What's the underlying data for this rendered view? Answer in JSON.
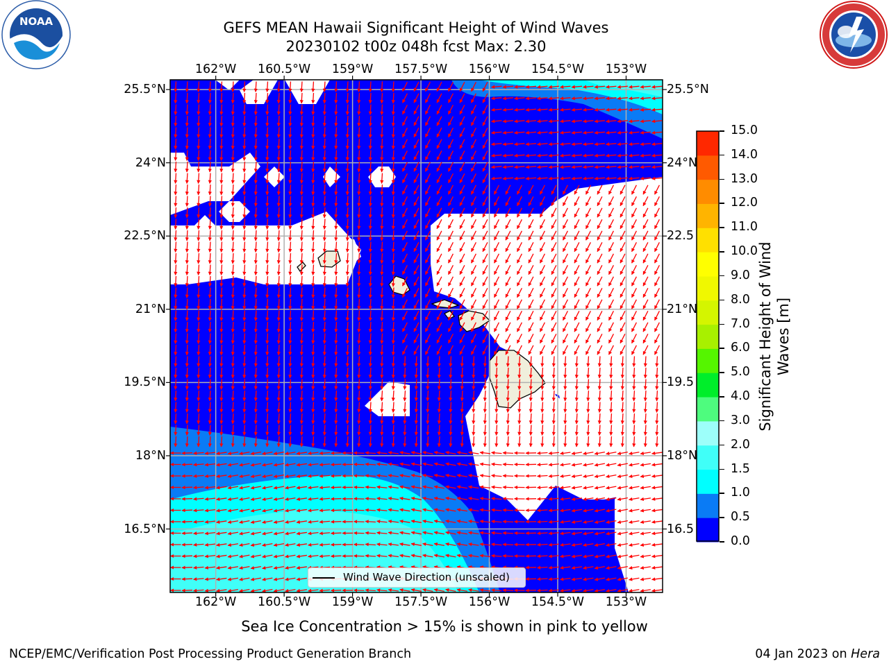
{
  "header": {
    "title_line1": "GEFS MEAN Hawaii Significant Height of Wind Waves",
    "title_line2": "20230102 t00z 048h fcst   Max: 2.30"
  },
  "logos": {
    "left": {
      "text": "NOAA",
      "ring_text": "NATIONAL OCEANIC AND ATMOSPHERIC ADMINISTRATION · U.S. DEPARTMENT OF COMMERCE"
    },
    "right": {
      "ring_text": "NATIONAL WEATHER SERVICE"
    }
  },
  "map": {
    "lon_labels": [
      "162°W",
      "160.5°W",
      "159°W",
      "157.5°W",
      "156°W",
      "154.5°W",
      "153°W"
    ],
    "lat_labels": [
      "25.5°N",
      "24°N",
      "22.5°N",
      "21°N",
      "19.5°N",
      "18°N",
      "16.5°N"
    ],
    "lat_labels_right": [
      "25.5°N",
      "24°N",
      "22.5",
      "21°N",
      "19.5",
      "18°N",
      "16.5"
    ],
    "extent": {
      "lon_min": -163,
      "lon_max": -152.2,
      "lat_min": 15.2,
      "lat_max": 25.7
    },
    "water_color": "#0000ff",
    "land_color": "#f0efdc",
    "arrow_color": "#ff0000",
    "legend_label": "Wind Wave Direction (unscaled)"
  },
  "colorbar": {
    "label": "Significant Height of Wind Waves [m]",
    "ticks": [
      "0.0",
      "0.5",
      "1.0",
      "1.5",
      "2.0",
      "3.0",
      "4.0",
      "5.0",
      "6.0",
      "7.0",
      "8.0",
      "9.0",
      "10.0",
      "11.0",
      "12.0",
      "13.0",
      "14.0",
      "15.0"
    ],
    "colors": [
      "#0000ff",
      "#0a7bf5",
      "#00ffff",
      "#40fff8",
      "#9dfffa",
      "#4efc7e",
      "#00ee2a",
      "#55f500",
      "#a8f000",
      "#d4f500",
      "#f0f800",
      "#ffff00",
      "#ffe000",
      "#ffb400",
      "#ff8c00",
      "#ff5a00",
      "#ff2800",
      "#ff0000"
    ]
  },
  "footer": {
    "note": "Sea Ice Concentration > 15% is shown in pink to yellow",
    "credit_left": "NCEP/EMC/Verification Post Processing Product Generation Branch",
    "credit_date": "04 Jan 2023 on ",
    "credit_host": "Hera"
  }
}
